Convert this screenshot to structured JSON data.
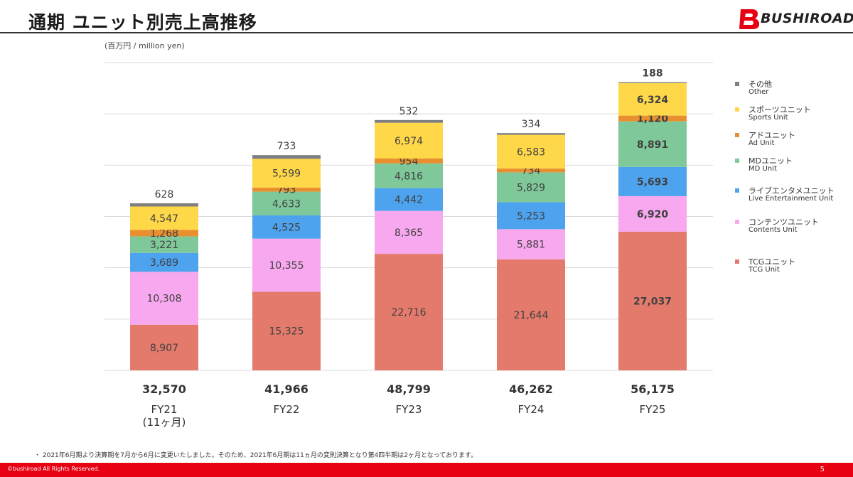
{
  "header": {
    "title": "通期 ユニット別売上高推移",
    "logo_text": "BUSHIROAD"
  },
  "unit_note": "(百万円 / million yen)",
  "legend": [
    {
      "jp": "その他",
      "en": "Other",
      "color": "#7f7f7f"
    },
    {
      "jp": "スポーツユニット",
      "en": "Sports Unit",
      "color": "#ffd84a"
    },
    {
      "jp": "アドユニット",
      "en": "Ad Unit",
      "color": "#e8902f"
    },
    {
      "jp": "MDユニット",
      "en": "MD Unit",
      "color": "#7fc89a"
    },
    {
      "jp": "ライブエンタメユニット",
      "en": "Live Entertainment Unit",
      "color": "#4da3ee"
    },
    {
      "jp": "コンテンツユニット",
      "en": "Contents Unit",
      "color": "#f7a8ee"
    },
    {
      "jp": "TCGユニット",
      "en": "TCG Unit",
      "color": "#e47a6c"
    }
  ],
  "chart_data": {
    "type": "bar",
    "stacked": true,
    "categories": [
      "FY21",
      "FY22",
      "FY23",
      "FY24",
      "FY25"
    ],
    "category_sublabels": [
      "(11ヶ月)",
      "",
      "",
      "",
      ""
    ],
    "totals": [
      32570,
      41966,
      48799,
      46262,
      56175
    ],
    "totals_labels": [
      "32,570",
      "41,966",
      "48,799",
      "46,262",
      "56,175"
    ],
    "series": [
      {
        "name": "TCGユニット",
        "color": "#e47a6c",
        "values": [
          8907,
          15325,
          22716,
          21644,
          27037
        ],
        "labels": [
          "8,907",
          "15,325",
          "22,716",
          "21,644",
          "27,037"
        ]
      },
      {
        "name": "コンテンツユニット",
        "color": "#f7a8ee",
        "values": [
          10308,
          10355,
          8365,
          5881,
          6920
        ],
        "labels": [
          "10,308",
          "10,355",
          "8,365",
          "5,881",
          "6,920"
        ]
      },
      {
        "name": "ライブエンタメユニット",
        "color": "#4da3ee",
        "values": [
          3689,
          4525,
          4442,
          5253,
          5693
        ],
        "labels": [
          "3,689",
          "4,525",
          "4,442",
          "5,253",
          "5,693"
        ]
      },
      {
        "name": "MDユニット",
        "color": "#7fc89a",
        "values": [
          3221,
          4633,
          4816,
          5829,
          8891
        ],
        "labels": [
          "3,221",
          "4,633",
          "4,816",
          "5,829",
          "8,891"
        ]
      },
      {
        "name": "アドユニット",
        "color": "#e8902f",
        "values": [
          1268,
          793,
          954,
          734,
          1120
        ],
        "labels": [
          "1,268",
          "793",
          "954",
          "734",
          "1,120"
        ]
      },
      {
        "name": "スポーツユニット",
        "color": "#ffd84a",
        "values": [
          4547,
          5599,
          6974,
          6583,
          6324
        ],
        "labels": [
          "4,547",
          "5,599",
          "6,974",
          "6,583",
          "6,324"
        ]
      },
      {
        "name": "その他",
        "color": "#7f7f7f",
        "values": [
          628,
          733,
          532,
          334,
          188
        ],
        "labels": [
          "628",
          "733",
          "532",
          "334",
          "188"
        ]
      }
    ],
    "bold_category_index": 4,
    "ylim": [
      0,
      60000
    ],
    "grid": true,
    "legend_position": "right"
  },
  "footnote": "・ 2021年6月期より決算期を7月から6月に変更いたしました。そのため、2021年6月期は11ヵ月の変則決算となり第4四半期は2ヶ月となっております。",
  "footer": {
    "copyright": "©bushiroad All Rights Reserved.",
    "page_number": "5"
  }
}
